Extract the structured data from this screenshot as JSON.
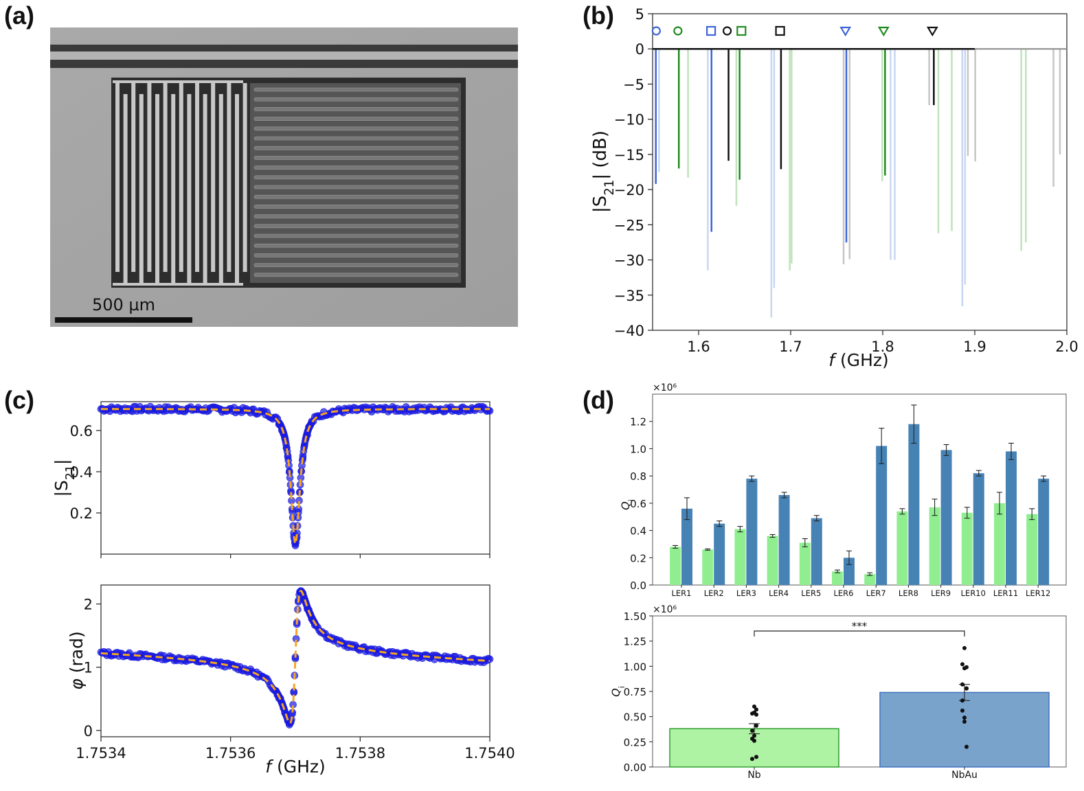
{
  "panels": {
    "a": {
      "letter": "(a)",
      "scalebar_label": "500 µm"
    },
    "b": {
      "letter": "(b)"
    },
    "c": {
      "letter": "(c)"
    },
    "d": {
      "letter": "(d)"
    }
  },
  "colors": {
    "blue": "#3c63d8",
    "green": "#1f8a1f",
    "black": "#111111",
    "light_blue": "#c8d6f2",
    "light_green": "#bfe3bb",
    "light_gray": "#c6c6c6",
    "data_blue": "#1a1ae0",
    "fit_orange": "#f5a623",
    "bar_green": "#90ee90",
    "bar_blue": "#4682b4",
    "agg_green": "#aef2a4",
    "agg_blue": "#7aa3cc"
  },
  "chart_data": [
    {
      "id": "b",
      "type": "bar",
      "title": "",
      "xlabel_italic": "f",
      "xlabel_rest": " (GHz)",
      "ylabel": "|S21| (dB)",
      "ylabel_main": "|S",
      "ylabel_sub": "21",
      "ylabel_tail": "| (dB)",
      "xlim": [
        1.55,
        2.0
      ],
      "ylim": [
        -40,
        5
      ],
      "xticks": [
        1.6,
        1.7,
        1.8,
        1.9,
        2.0
      ],
      "xtick_labels": [
        "1.6",
        "1.7",
        "1.8",
        "1.9",
        "2.0"
      ],
      "yticks": [
        5,
        0,
        -5,
        -10,
        -15,
        -20,
        -25,
        -30,
        -35,
        -40
      ],
      "ytick_labels": [
        "5",
        "0",
        "−5",
        "−10",
        "−15",
        "−20",
        "−25",
        "−30",
        "−35",
        "−40"
      ],
      "dips": [
        {
          "f": 1.5535,
          "depth": -19.2,
          "color": "blue"
        },
        {
          "f": 1.5785,
          "depth": -17.0,
          "color": "green"
        },
        {
          "f": 1.614,
          "depth": -26.0,
          "color": "blue"
        },
        {
          "f": 1.6325,
          "depth": -15.9,
          "color": "black"
        },
        {
          "f": 1.6445,
          "depth": -18.6,
          "color": "green"
        },
        {
          "f": 1.6895,
          "depth": -17.1,
          "color": "black"
        },
        {
          "f": 1.7605,
          "depth": -27.5,
          "color": "blue"
        },
        {
          "f": 1.8025,
          "depth": -18.0,
          "color": "green"
        },
        {
          "f": 1.8555,
          "depth": -8.0,
          "color": "black"
        }
      ],
      "faint_dips": [
        {
          "f": 1.557,
          "depth": -17.5,
          "color": "light_blue"
        },
        {
          "f": 1.5885,
          "depth": -18.3,
          "color": "light_green"
        },
        {
          "f": 1.61,
          "depth": -31.5,
          "color": "light_blue"
        },
        {
          "f": 1.641,
          "depth": -22.3,
          "color": "light_green"
        },
        {
          "f": 1.679,
          "depth": -38.2,
          "color": "light_blue"
        },
        {
          "f": 1.682,
          "depth": -34.0,
          "color": "light_blue"
        },
        {
          "f": 1.699,
          "depth": -31.5,
          "color": "light_green"
        },
        {
          "f": 1.701,
          "depth": -30.5,
          "color": "light_green"
        },
        {
          "f": 1.7575,
          "depth": -30.6,
          "color": "light_gray"
        },
        {
          "f": 1.764,
          "depth": -29.9,
          "color": "light_gray"
        },
        {
          "f": 1.7995,
          "depth": -18.8,
          "color": "light_green"
        },
        {
          "f": 1.8085,
          "depth": -30.0,
          "color": "light_blue"
        },
        {
          "f": 1.813,
          "depth": -30.0,
          "color": "light_blue"
        },
        {
          "f": 1.8505,
          "depth": -8.0,
          "color": "light_gray"
        },
        {
          "f": 1.8605,
          "depth": -26.2,
          "color": "light_green"
        },
        {
          "f": 1.875,
          "depth": -25.9,
          "color": "light_green"
        },
        {
          "f": 1.8865,
          "depth": -36.6,
          "color": "light_blue"
        },
        {
          "f": 1.8895,
          "depth": -33.5,
          "color": "light_blue"
        },
        {
          "f": 1.8925,
          "depth": -15.2,
          "color": "light_gray"
        },
        {
          "f": 1.9005,
          "depth": -16.0,
          "color": "light_gray"
        },
        {
          "f": 1.9505,
          "depth": -28.7,
          "color": "light_green"
        },
        {
          "f": 1.9555,
          "depth": -27.5,
          "color": "light_green"
        },
        {
          "f": 1.9855,
          "depth": -19.6,
          "color": "light_gray"
        },
        {
          "f": 1.9925,
          "depth": -15.0,
          "color": "light_gray"
        }
      ],
      "markers": [
        {
          "f": 1.554,
          "shape": "circle",
          "color": "blue"
        },
        {
          "f": 1.5775,
          "shape": "circle",
          "color": "green"
        },
        {
          "f": 1.6135,
          "shape": "square",
          "color": "blue"
        },
        {
          "f": 1.631,
          "shape": "circle",
          "color": "black"
        },
        {
          "f": 1.6465,
          "shape": "square",
          "color": "green"
        },
        {
          "f": 1.6885,
          "shape": "square",
          "color": "black"
        },
        {
          "f": 1.7595,
          "shape": "triangle",
          "color": "blue"
        },
        {
          "f": 1.801,
          "shape": "triangle",
          "color": "green"
        },
        {
          "f": 1.854,
          "shape": "triangle",
          "color": "black"
        }
      ]
    },
    {
      "id": "c_top",
      "type": "scatter",
      "ylabel": "|S21|",
      "ylabel_main": "|S",
      "ylabel_sub": "21",
      "ylabel_tail": "|",
      "xlim": [
        1.7534,
        1.754
      ],
      "ylim": [
        0.0,
        0.74
      ],
      "yticks": [
        0.2,
        0.4,
        0.6
      ],
      "ytick_labels": [
        "0.2",
        "0.4",
        "0.6"
      ],
      "resonance": {
        "f0": 1.7537,
        "baseline_left": 0.705,
        "baseline_right": 0.705,
        "min": 0.05,
        "half_width": 8.5e-06
      }
    },
    {
      "id": "c_bottom",
      "type": "scatter",
      "xlabel_italic": "f",
      "xlabel_rest": " (GHz)",
      "ylabel_italic": "φ",
      "ylabel_rest": " (rad)",
      "xlim": [
        1.7534,
        1.754
      ],
      "ylim": [
        -0.1,
        2.3
      ],
      "xticks": [
        1.7534,
        1.7536,
        1.7538,
        1.754
      ],
      "xtick_labels": [
        "1.7534",
        "1.7536",
        "1.7538",
        "1.7540"
      ],
      "yticks": [
        0,
        1,
        2
      ],
      "ytick_labels": [
        "0",
        "1",
        "2"
      ],
      "resonance": {
        "f0": 1.7537,
        "baseline": 1.16,
        "amplitude": 1.05,
        "half_width": 8.5e-06
      }
    },
    {
      "id": "d_top",
      "type": "bar",
      "ylabel": "Qi",
      "ylabel_main": "Q",
      "ylabel_sub": "i",
      "scale_label": "×10⁶",
      "ylim": [
        0,
        1.4
      ],
      "yticks": [
        0.0,
        0.2,
        0.4,
        0.6,
        0.8,
        1.0,
        1.2
      ],
      "ytick_labels": [
        "0.0",
        "0.2",
        "0.4",
        "0.6",
        "0.8",
        "1.0",
        "1.2"
      ],
      "categories": [
        "LER1",
        "LER2",
        "LER3",
        "LER4",
        "LER5",
        "LER6",
        "LER7",
        "LER8",
        "LER9",
        "LER10",
        "LER11",
        "LER12"
      ],
      "series": [
        {
          "name": "Nb",
          "color": "bar_green",
          "values": [
            0.28,
            0.26,
            0.41,
            0.36,
            0.31,
            0.1,
            0.08,
            0.54,
            0.57,
            0.53,
            0.6,
            0.52
          ],
          "errors": [
            0.01,
            0.005,
            0.02,
            0.01,
            0.03,
            0.01,
            0.01,
            0.02,
            0.06,
            0.04,
            0.08,
            0.04
          ]
        },
        {
          "name": "NbAu",
          "color": "bar_blue",
          "values": [
            0.56,
            0.45,
            0.78,
            0.66,
            0.49,
            0.2,
            1.02,
            1.18,
            0.99,
            0.82,
            0.98,
            0.78
          ],
          "errors": [
            0.08,
            0.02,
            0.02,
            0.02,
            0.02,
            0.05,
            0.13,
            0.14,
            0.04,
            0.02,
            0.06,
            0.02
          ]
        }
      ]
    },
    {
      "id": "d_bottom",
      "type": "bar",
      "ylabel": "Qi",
      "ylabel_main": "Q",
      "ylabel_sub": "i",
      "scale_label": "×10⁶",
      "ylim": [
        0,
        1.5
      ],
      "yticks": [
        0.0,
        0.25,
        0.5,
        0.75,
        1.0,
        1.25,
        1.5
      ],
      "ytick_labels": [
        "0.00",
        "0.25",
        "0.50",
        "0.75",
        "1.00",
        "1.25",
        "1.50"
      ],
      "categories": [
        "Nb",
        "NbAu"
      ],
      "values": [
        0.38,
        0.74
      ],
      "errors": [
        0.05,
        0.08
      ],
      "colors": [
        "agg_green",
        "agg_blue"
      ],
      "points": [
        [
          0.28,
          0.26,
          0.41,
          0.36,
          0.31,
          0.1,
          0.08,
          0.54,
          0.57,
          0.53,
          0.6,
          0.52
        ],
        [
          0.56,
          0.45,
          0.78,
          0.66,
          0.49,
          0.2,
          1.02,
          1.18,
          0.99,
          0.82,
          0.98,
          0.78
        ]
      ],
      "significance": "***"
    }
  ]
}
